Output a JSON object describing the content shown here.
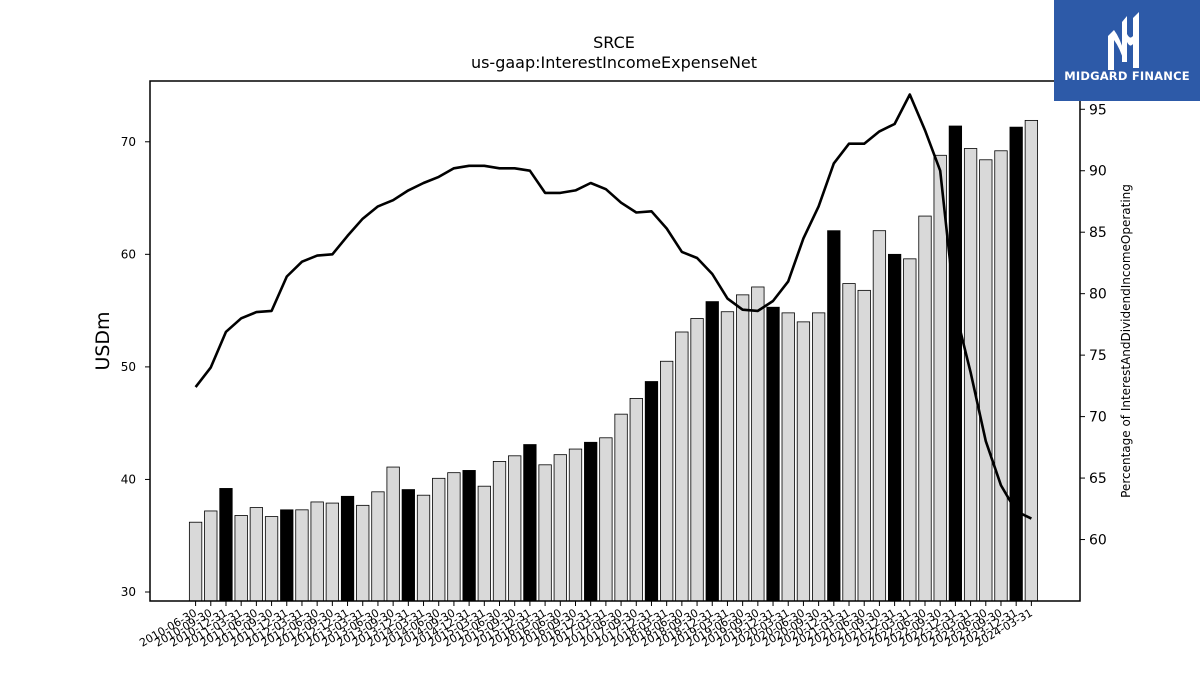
{
  "chart_data": {
    "type": "bar",
    "title": "SRCE",
    "subtitle": "us-gaap:InterestIncomeExpenseNet",
    "ylabel": "USDm",
    "y2label": "Percentage of InterestAndDividendIncomeOperating",
    "ylim": [
      29.2,
      75.4
    ],
    "y2lim": [
      55.0,
      97.3
    ],
    "yticks": [
      30,
      40,
      50,
      60,
      70
    ],
    "y2ticks": [
      60,
      65,
      70,
      75,
      80,
      85,
      90,
      95
    ],
    "grid": false,
    "legend": "none",
    "colors": {
      "bar": "#d9d9d9",
      "bar_highlight": "#000000",
      "bar_edge": "#000000",
      "line": "#000000"
    },
    "categories": [
      "2010-06-30",
      "2010-09-30",
      "2010-12-31",
      "2011-03-31",
      "2011-06-30",
      "2011-09-30",
      "2011-12-31",
      "2012-03-31",
      "2012-06-30",
      "2012-09-30",
      "2012-12-31",
      "2013-03-31",
      "2013-06-30",
      "2013-09-30",
      "2013-12-31",
      "2014-03-31",
      "2014-06-30",
      "2014-09-30",
      "2014-12-31",
      "2015-03-31",
      "2015-06-30",
      "2015-09-30",
      "2015-12-31",
      "2016-03-31",
      "2016-06-30",
      "2016-09-30",
      "2016-12-31",
      "2017-03-31",
      "2017-06-30",
      "2017-09-30",
      "2017-12-31",
      "2018-03-31",
      "2018-06-30",
      "2018-09-30",
      "2018-12-31",
      "2019-03-31",
      "2019-06-30",
      "2019-09-30",
      "2019-12-31",
      "2020-03-31",
      "2020-06-30",
      "2020-09-30",
      "2020-12-31",
      "2021-03-31",
      "2021-06-30",
      "2021-09-30",
      "2021-12-31",
      "2022-03-31",
      "2022-06-30",
      "2022-09-30",
      "2022-12-31",
      "2023-03-31",
      "2023-06-30",
      "2023-09-30",
      "2023-12-31",
      "2024-03-31"
    ],
    "series": [
      {
        "kind": "bar",
        "axis": "left",
        "values": [
          36.2,
          37.2,
          39.2,
          36.8,
          37.5,
          36.7,
          37.3,
          37.3,
          38.0,
          37.9,
          38.5,
          37.7,
          38.9,
          41.1,
          39.1,
          38.6,
          40.1,
          40.6,
          40.8,
          39.4,
          41.6,
          42.1,
          43.1,
          41.3,
          42.2,
          42.7,
          43.3,
          43.7,
          45.8,
          47.2,
          48.7,
          50.5,
          53.1,
          54.3,
          55.8,
          54.9,
          56.4,
          57.1,
          55.3,
          54.8,
          54.0,
          54.8,
          62.1,
          57.4,
          56.8,
          62.1,
          60.0,
          59.6,
          63.4,
          68.8,
          71.4,
          69.4,
          68.4,
          69.2,
          71.3,
          71.9
        ],
        "highlight": [
          false,
          false,
          true,
          false,
          false,
          false,
          true,
          false,
          false,
          false,
          true,
          false,
          false,
          false,
          true,
          false,
          false,
          false,
          true,
          false,
          false,
          false,
          true,
          false,
          false,
          false,
          true,
          false,
          false,
          false,
          true,
          false,
          false,
          false,
          true,
          false,
          false,
          false,
          true,
          false,
          false,
          false,
          true,
          false,
          false,
          false,
          true,
          false,
          false,
          false,
          true,
          false,
          false,
          false,
          true,
          false
        ]
      },
      {
        "kind": "line",
        "axis": "right",
        "values": [
          72.4,
          74.0,
          76.9,
          78.0,
          78.5,
          78.6,
          81.4,
          82.6,
          83.1,
          83.2,
          84.7,
          86.1,
          87.1,
          87.6,
          88.4,
          89.0,
          89.5,
          90.2,
          90.4,
          90.4,
          90.2,
          90.2,
          90.0,
          88.2,
          88.2,
          88.4,
          89.0,
          88.5,
          87.4,
          86.6,
          86.7,
          85.3,
          83.4,
          82.9,
          81.6,
          79.6,
          78.7,
          78.6,
          79.4,
          81.0,
          84.5,
          87.1,
          90.6,
          92.2,
          92.2,
          93.2,
          93.8,
          96.2,
          93.3,
          90.0,
          78.6,
          73.6,
          68.0,
          64.4,
          62.3,
          61.7
        ]
      }
    ]
  },
  "logo": {
    "text": "MIDGARD FINANCE",
    "background": "#2d5aa8",
    "text_color": "#ffffff"
  }
}
